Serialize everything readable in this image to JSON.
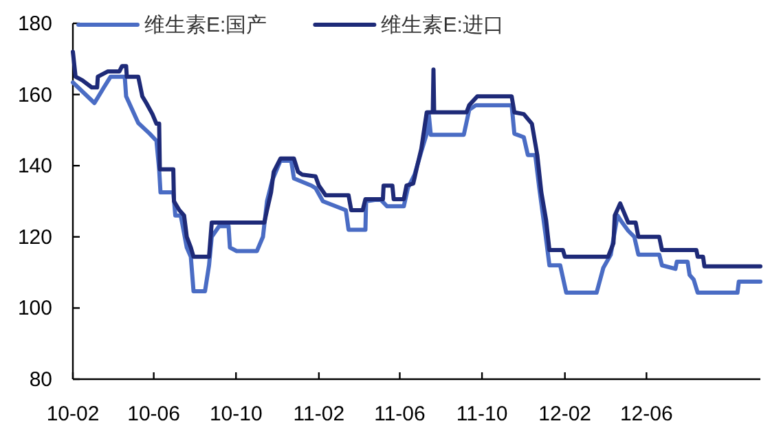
{
  "chart_data": {
    "type": "line",
    "legend": "top left",
    "marker": "none",
    "line_style": "solid",
    "grid": false,
    "xlim": [
      "2010-02-01",
      "2012-11-17"
    ],
    "ylim": [
      80,
      180
    ],
    "yticks": [
      80,
      100,
      120,
      140,
      160,
      180
    ],
    "xticks": [
      {
        "value": "2010-02-01",
        "label": "10-02"
      },
      {
        "value": "2010-06-01",
        "label": "10-06"
      },
      {
        "value": "2010-10-01",
        "label": "10-10"
      },
      {
        "value": "2011-02-01",
        "label": "11-02"
      },
      {
        "value": "2011-06-01",
        "label": "11-06"
      },
      {
        "value": "2011-10-01",
        "label": "11-10"
      },
      {
        "value": "2012-02-01",
        "label": "12-02"
      },
      {
        "value": "2012-06-01",
        "label": "12-06"
      }
    ],
    "series": [
      {
        "name": "维生素E:国产",
        "color": "#4a6cc4",
        "x": [
          "2010-02-01",
          "2010-03-05",
          "2010-03-19",
          "2010-03-29",
          "2010-04-19",
          "2010-04-21",
          "2010-05-09",
          "2010-05-26",
          "2010-06-05",
          "2010-06-09",
          "2010-06-11",
          "2010-06-30",
          "2010-07-03",
          "2010-07-11",
          "2010-07-20",
          "2010-07-26",
          "2010-07-30",
          "2010-08-16",
          "2010-08-22",
          "2010-08-26",
          "2010-09-06",
          "2010-09-20",
          "2010-09-22",
          "2010-10-02",
          "2010-11-01",
          "2010-11-10",
          "2010-11-16",
          "2010-11-24",
          "2010-12-06",
          "2010-12-22",
          "2010-12-26",
          "2011-01-21",
          "2011-01-27",
          "2011-02-07",
          "2011-03-13",
          "2011-03-17",
          "2011-04-11",
          "2011-04-12",
          "2011-05-03",
          "2011-05-13",
          "2011-06-07",
          "2011-06-13",
          "2011-06-23",
          "2011-07-03",
          "2011-07-11",
          "2011-07-14",
          "2011-07-17",
          "2011-09-04",
          "2011-09-12",
          "2011-09-22",
          "2011-11-14",
          "2011-11-18",
          "2011-12-02",
          "2011-12-08",
          "2011-12-19",
          "2011-12-25",
          "2012-01-03",
          "2012-01-09",
          "2012-01-25",
          "2012-02-03",
          "2012-03-19",
          "2012-03-29",
          "2012-04-09",
          "2012-04-19",
          "2012-04-26",
          "2012-05-05",
          "2012-05-14",
          "2012-05-20",
          "2012-06-20",
          "2012-06-24",
          "2012-07-14",
          "2012-07-16",
          "2012-08-01",
          "2012-08-04",
          "2012-08-10",
          "2012-08-16",
          "2012-10-14",
          "2012-10-16",
          "2012-11-17"
        ],
        "values": [
          163.4,
          157.6,
          162,
          165,
          165,
          159.5,
          152,
          149,
          147,
          139,
          132.5,
          132.5,
          126,
          126,
          117,
          114.4,
          104.7,
          104.7,
          112,
          120,
          123,
          123,
          117,
          116,
          116,
          120,
          130,
          136,
          141.4,
          141.4,
          136.4,
          134.4,
          133.7,
          130,
          127.5,
          122,
          122,
          130,
          130.6,
          128.6,
          128.6,
          133.7,
          137.5,
          144,
          149,
          154.5,
          148.7,
          148.7,
          155.7,
          157,
          157,
          149,
          148,
          143,
          143,
          133.7,
          121,
          112,
          112,
          104.3,
          104.3,
          111.3,
          115,
          126,
          124,
          121.7,
          120,
          115,
          115,
          112,
          111,
          113,
          113,
          109.3,
          108,
          104.3,
          104.3,
          107.4,
          107.4
        ]
      },
      {
        "name": "维生素E:进口",
        "color": "#1e2a78",
        "x": [
          "2010-02-01",
          "2010-02-05",
          "2010-02-15",
          "2010-03-01",
          "2010-03-09",
          "2010-03-10",
          "2010-03-25",
          "2010-04-11",
          "2010-04-15",
          "2010-04-21",
          "2010-04-22",
          "2010-05-09",
          "2010-05-15",
          "2010-05-21",
          "2010-05-30",
          "2010-06-05",
          "2010-06-09",
          "2010-06-10",
          "2010-06-30",
          "2010-07-01",
          "2010-07-09",
          "2010-07-16",
          "2010-07-20",
          "2010-07-26",
          "2010-07-30",
          "2010-08-22",
          "2010-08-26",
          "2010-11-12",
          "2010-11-16",
          "2010-11-22",
          "2010-11-26",
          "2010-12-06",
          "2010-12-26",
          "2011-01-01",
          "2011-01-07",
          "2011-01-27",
          "2011-02-01",
          "2011-02-11",
          "2011-03-17",
          "2011-03-21",
          "2011-04-07",
          "2011-04-11",
          "2011-05-07",
          "2011-05-08",
          "2011-05-21",
          "2011-05-23",
          "2011-06-07",
          "2011-06-11",
          "2011-06-21",
          "2011-06-27",
          "2011-07-03",
          "2011-07-11",
          "2011-07-20",
          "2011-07-21",
          "2011-07-22",
          "2011-09-08",
          "2011-09-12",
          "2011-09-24",
          "2011-11-14",
          "2011-11-18",
          "2011-12-02",
          "2011-12-14",
          "2011-12-22",
          "2011-12-28",
          "2012-01-04",
          "2012-01-09",
          "2012-01-29",
          "2012-02-01",
          "2012-04-05",
          "2012-04-13",
          "2012-04-15",
          "2012-04-23",
          "2012-04-29",
          "2012-05-05",
          "2012-05-16",
          "2012-05-20",
          "2012-06-20",
          "2012-06-24",
          "2012-08-14",
          "2012-08-16",
          "2012-08-24",
          "2012-08-26",
          "2012-11-17"
        ],
        "values": [
          172,
          165,
          164,
          162,
          162,
          165,
          166.5,
          166.5,
          168,
          168,
          165,
          165,
          159.5,
          157.6,
          154.5,
          151.8,
          151.8,
          139,
          139,
          130,
          127.5,
          126,
          120,
          117,
          114.4,
          114.4,
          124,
          124,
          127.5,
          132.5,
          138.3,
          142,
          142,
          138.3,
          137.5,
          137,
          134.4,
          131.7,
          131.7,
          127.5,
          127.5,
          130.6,
          130.6,
          134.4,
          134.4,
          130.6,
          130.6,
          134.4,
          135,
          140,
          144.8,
          155,
          155,
          167,
          155,
          155,
          157,
          159.5,
          159.5,
          155,
          154.5,
          151.8,
          143,
          132.5,
          124.8,
          116.3,
          116.3,
          114.4,
          114.4,
          118.2,
          126,
          129.4,
          126.7,
          124,
          124,
          120,
          120,
          116.3,
          116.3,
          114.4,
          114.4,
          111.7,
          111.7
        ]
      }
    ]
  }
}
